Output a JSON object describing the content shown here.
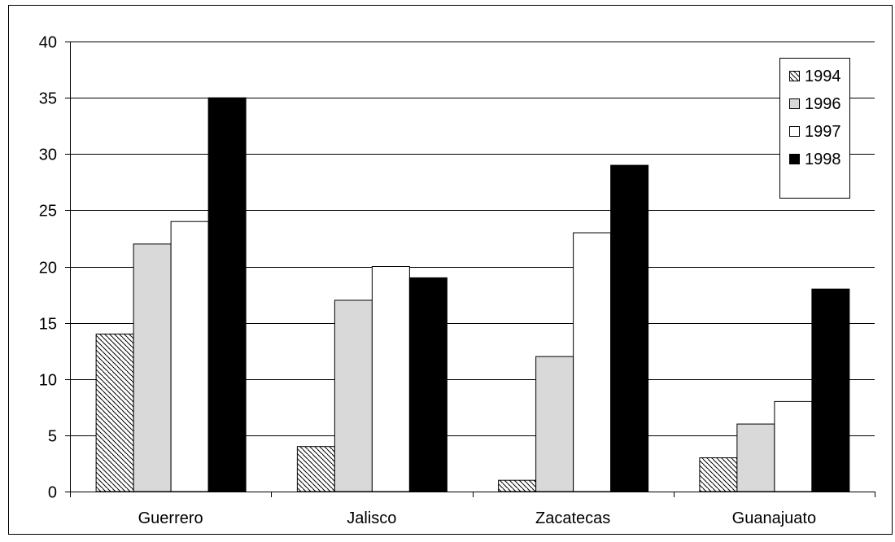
{
  "chart_data": {
    "type": "bar",
    "title": "",
    "xlabel": "",
    "ylabel": "",
    "ylim": [
      0,
      40
    ],
    "yticks": [
      0,
      5,
      10,
      15,
      20,
      25,
      30,
      35,
      40
    ],
    "grid": "horizontal",
    "legend_position": "top-right",
    "categories": [
      "Guerrero",
      "Jalisco",
      "Zacatecas",
      "Guanajuato"
    ],
    "series": [
      {
        "name": "1994",
        "values": [
          14,
          4,
          1,
          3
        ],
        "fill": "hatch",
        "color": "#000000"
      },
      {
        "name": "1996",
        "values": [
          22,
          17,
          12,
          6
        ],
        "fill": "solid",
        "color": "#d9d9d9"
      },
      {
        "name": "1997",
        "values": [
          24,
          20,
          23,
          8
        ],
        "fill": "solid",
        "color": "#ffffff"
      },
      {
        "name": "1998",
        "values": [
          35,
          19,
          29,
          18
        ],
        "fill": "solid",
        "color": "#000000"
      }
    ]
  }
}
